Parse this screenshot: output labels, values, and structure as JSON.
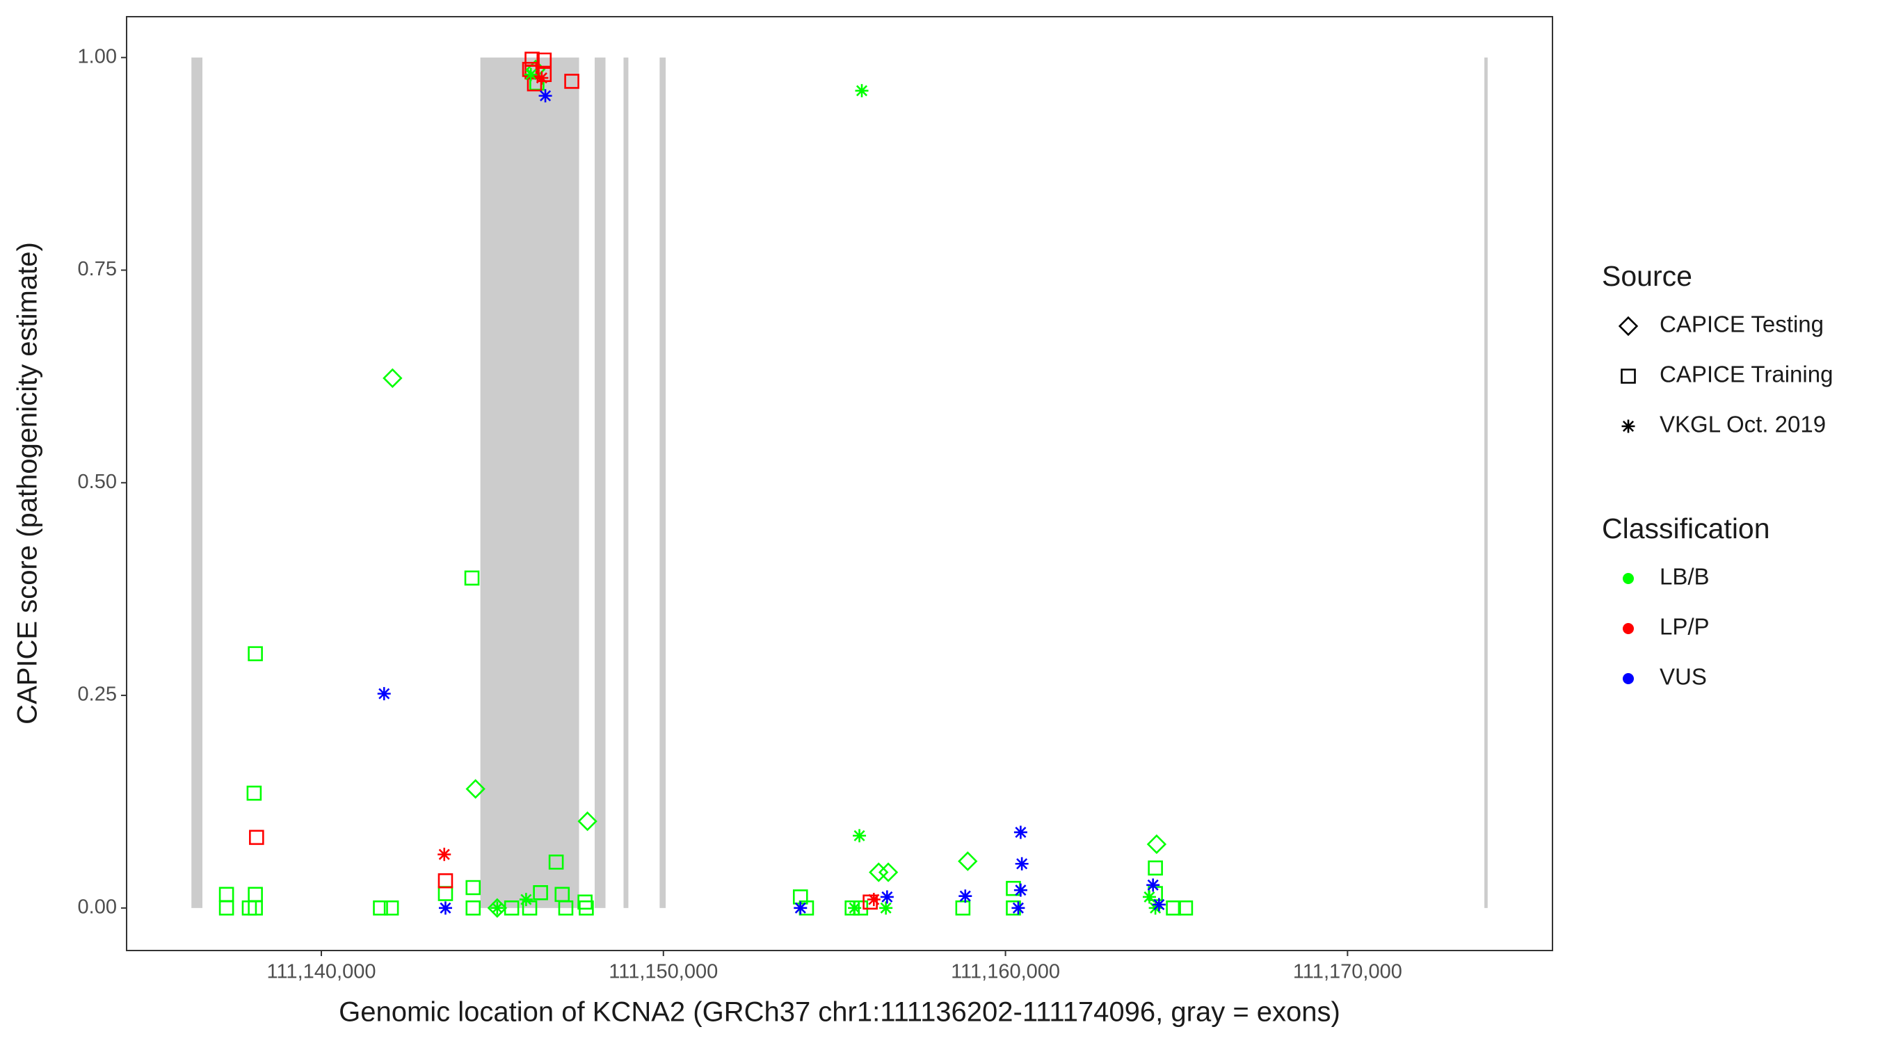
{
  "chart_data": {
    "type": "scatter",
    "x_label": "Genomic location of KCNA2 (GRCh37 chr1:111136202-111174096, gray = exons)",
    "y_label": "CAPICE score (pathogenicity estimate)",
    "xlim": [
      111134307,
      111175991
    ],
    "ylim": [
      -0.05,
      1.048
    ],
    "xticks": [
      {
        "value": 111140000,
        "label": "111,140,000"
      },
      {
        "value": 111150000,
        "label": "111,150,000"
      },
      {
        "value": 111160000,
        "label": "111,160,000"
      },
      {
        "value": 111170000,
        "label": "111,170,000"
      }
    ],
    "yticks": [
      {
        "value": 0,
        "label": "0.00"
      },
      {
        "value": 0.25,
        "label": "0.25"
      },
      {
        "value": 0.5,
        "label": "0.50"
      },
      {
        "value": 0.75,
        "label": "0.75"
      },
      {
        "value": 1,
        "label": "1.00"
      }
    ],
    "exon_color": "#cccccc",
    "exons": [
      [
        111136202,
        111136523
      ],
      [
        111144649,
        111147534
      ],
      [
        111147991,
        111148307
      ],
      [
        111148835,
        111148976
      ],
      [
        111149890,
        111150066
      ],
      [
        111174000,
        111174096
      ]
    ],
    "legends": [
      {
        "title": "Source",
        "entries": [
          {
            "label": "CAPICE Testing",
            "shape": "diamond"
          },
          {
            "label": "CAPICE Training",
            "shape": "square"
          },
          {
            "label": "VKGL Oct. 2019",
            "shape": "asterisk"
          }
        ]
      },
      {
        "title": "Classification",
        "entries": [
          {
            "label": "LB/B",
            "color": "#00ff00"
          },
          {
            "label": "LP/P",
            "color": "#ff0000"
          },
          {
            "label": "VUS",
            "color": "#0000ff"
          }
        ]
      }
    ],
    "series": [
      {
        "source": "CAPICE Testing",
        "classification": "LB/B",
        "x": [
          111142081,
          111144508,
          111147780,
          111156293,
          111156574,
          111158896,
          111164419,
          111146267,
          111145142
        ],
        "y": [
          0.623,
          0.14,
          0.102,
          0.042,
          0.042,
          0.055,
          0.075,
          0.986,
          0
        ]
      },
      {
        "source": "CAPICE Training",
        "classification": "LB/B",
        "x": [
          111137227,
          111137227,
          111138071,
          111138036,
          111138071,
          111138071,
          111137895,
          111141729,
          111142046,
          111143629,
          111144403,
          111144438,
          111144438,
          111145564,
          111146408,
          111146865,
          111147041,
          111147147,
          111147709,
          111147745,
          111154006,
          111154182,
          111155519,
          111155765,
          111158755,
          111160232,
          111160232,
          111164383,
          111164383,
          111164911,
          111165263,
          111146091,
          111146302
        ],
        "y": [
          0.016,
          0,
          0.299,
          0.135,
          0.016,
          0,
          0,
          0,
          0,
          0.017,
          0.388,
          0.024,
          0,
          0,
          0.018,
          0.054,
          0.016,
          0,
          0.007,
          0,
          0.013,
          0,
          0,
          0,
          0,
          0.023,
          0,
          0.047,
          0.017,
          0,
          0,
          0,
          0.97
        ]
      },
      {
        "source": "CAPICE Training",
        "classification": "LP/P",
        "x": [
          111138106,
          111143629,
          111146162,
          111146162,
          111146232,
          111146513,
          111146513,
          111147322,
          111156046,
          111146091
        ],
        "y": [
          0.083,
          0.032,
          0.998,
          0.983,
          0.969,
          0.997,
          0.98,
          0.972,
          0.007,
          0.986
        ]
      },
      {
        "source": "VKGL Oct. 2019",
        "classification": "LB/B",
        "x": [
          111155800,
          111155730,
          111146126,
          111145986,
          111145142,
          111155589,
          111164383,
          111164207,
          111156504
        ],
        "y": [
          0.961,
          0.085,
          0.98,
          0.01,
          0,
          0,
          0,
          0.013,
          0
        ]
      },
      {
        "source": "VKGL Oct. 2019",
        "classification": "LP/P",
        "x": [
          111143594,
          111146443,
          111156152
        ],
        "y": [
          0.063,
          0.976,
          0.01
        ]
      },
      {
        "source": "VKGL Oct. 2019",
        "classification": "VUS",
        "x": [
          111141835,
          111146549,
          111143629,
          111154006,
          111156539,
          111158825,
          111160444,
          111160479,
          111160444,
          111160373,
          111164313,
          111164489
        ],
        "y": [
          0.252,
          0.955,
          0,
          0,
          0.013,
          0.014,
          0.089,
          0.052,
          0.021,
          0,
          0.027,
          0.004
        ]
      }
    ]
  }
}
